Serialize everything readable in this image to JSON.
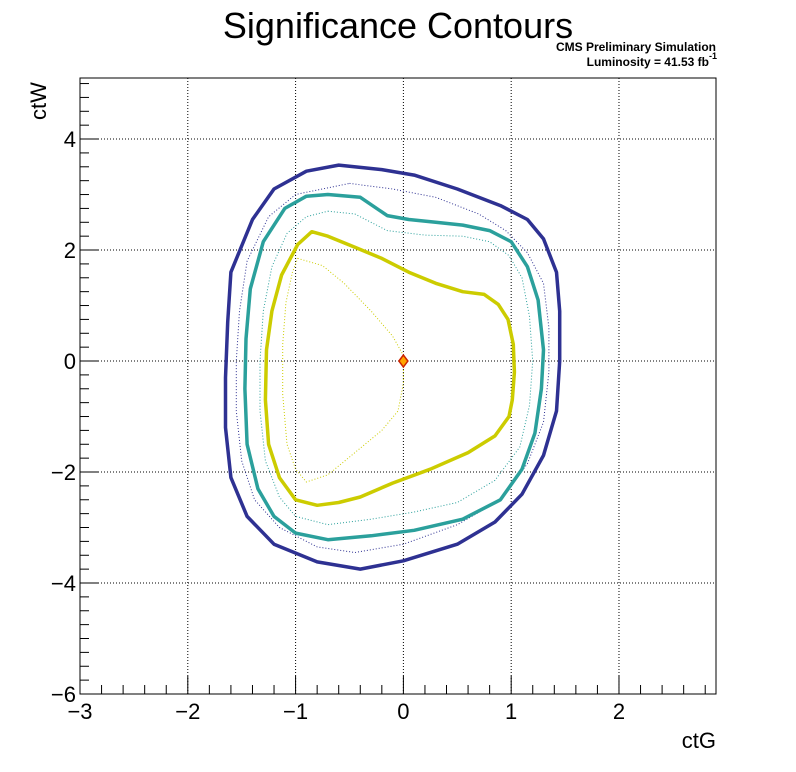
{
  "chart_data": {
    "type": "line",
    "title": "Significance Contours",
    "annotations": [
      "CMS Preliminary Simulation",
      "Luminosity = 41.53 fb",
      "-1"
    ],
    "xlabel": "ctG",
    "ylabel": "ctW",
    "xlim": [
      -3,
      2.9
    ],
    "ylim": [
      -6,
      5.1
    ],
    "x_ticks": [
      "−3",
      "−2",
      "−1",
      "0",
      "1",
      "2"
    ],
    "x_tick_values": [
      -3,
      -2,
      -1,
      0,
      1,
      2
    ],
    "y_ticks": [
      "−6",
      "−4",
      "−2",
      "0",
      "2",
      "4"
    ],
    "y_tick_values": [
      -6,
      -4,
      -2,
      0,
      2,
      4
    ],
    "grid": true,
    "best_fit_point": {
      "x": 0,
      "y": 0,
      "marker": "diamond",
      "fill": "#ffa500",
      "stroke": "#cc2200"
    },
    "series": [
      {
        "color": "#2e3192",
        "style": "solid",
        "points": [
          [
            -0.6,
            3.53
          ],
          [
            -0.2,
            3.45
          ],
          [
            0.1,
            3.35
          ],
          [
            0.5,
            3.1
          ],
          [
            0.9,
            2.8
          ],
          [
            1.15,
            2.55
          ],
          [
            1.3,
            2.2
          ],
          [
            1.42,
            1.6
          ],
          [
            1.45,
            0.9
          ],
          [
            1.45,
            0
          ],
          [
            1.42,
            -0.9
          ],
          [
            1.3,
            -1.7
          ],
          [
            1.1,
            -2.4
          ],
          [
            0.85,
            -2.9
          ],
          [
            0.5,
            -3.3
          ],
          [
            0,
            -3.6
          ],
          [
            -0.4,
            -3.75
          ],
          [
            -0.8,
            -3.62
          ],
          [
            -1.2,
            -3.3
          ],
          [
            -1.45,
            -2.8
          ],
          [
            -1.6,
            -2.1
          ],
          [
            -1.65,
            -1.2
          ],
          [
            -1.65,
            -0.3
          ],
          [
            -1.63,
            0.7
          ],
          [
            -1.6,
            1.6
          ],
          [
            -1.4,
            2.55
          ],
          [
            -1.2,
            3.1
          ],
          [
            -0.9,
            3.42
          ],
          [
            -0.6,
            3.53
          ]
        ]
      },
      {
        "color": "#2e3192",
        "style": "dotted",
        "points": [
          [
            -0.5,
            3.2
          ],
          [
            -0.1,
            3.1
          ],
          [
            0.3,
            2.95
          ],
          [
            0.7,
            2.65
          ],
          [
            0.95,
            2.35
          ],
          [
            1.15,
            1.95
          ],
          [
            1.3,
            1.4
          ],
          [
            1.35,
            0.6
          ],
          [
            1.35,
            -0.2
          ],
          [
            1.3,
            -1.1
          ],
          [
            1.15,
            -1.85
          ],
          [
            0.9,
            -2.5
          ],
          [
            0.5,
            -2.95
          ],
          [
            0,
            -3.3
          ],
          [
            -0.45,
            -3.45
          ],
          [
            -0.8,
            -3.35
          ],
          [
            -1.15,
            -3.0
          ],
          [
            -1.38,
            -2.5
          ],
          [
            -1.5,
            -1.8
          ],
          [
            -1.55,
            -0.9
          ],
          [
            -1.55,
            0
          ],
          [
            -1.52,
            0.9
          ],
          [
            -1.45,
            1.8
          ],
          [
            -1.25,
            2.6
          ],
          [
            -1.0,
            3.0
          ],
          [
            -0.5,
            3.2
          ]
        ]
      },
      {
        "color": "#2ba09c",
        "style": "solid",
        "points": [
          [
            -0.7,
            3.0
          ],
          [
            -0.4,
            2.95
          ],
          [
            -0.15,
            2.62
          ],
          [
            0.05,
            2.55
          ],
          [
            0.3,
            2.5
          ],
          [
            0.55,
            2.45
          ],
          [
            0.8,
            2.35
          ],
          [
            1.0,
            2.15
          ],
          [
            1.15,
            1.7
          ],
          [
            1.25,
            1.1
          ],
          [
            1.3,
            0.2
          ],
          [
            1.28,
            -0.5
          ],
          [
            1.22,
            -1.3
          ],
          [
            1.1,
            -1.95
          ],
          [
            0.9,
            -2.5
          ],
          [
            0.55,
            -2.85
          ],
          [
            0.1,
            -3.05
          ],
          [
            -0.3,
            -3.15
          ],
          [
            -0.7,
            -3.22
          ],
          [
            -1.0,
            -3.1
          ],
          [
            -1.2,
            -2.8
          ],
          [
            -1.35,
            -2.3
          ],
          [
            -1.45,
            -1.5
          ],
          [
            -1.47,
            -0.5
          ],
          [
            -1.46,
            0.4
          ],
          [
            -1.42,
            1.3
          ],
          [
            -1.3,
            2.15
          ],
          [
            -1.1,
            2.75
          ],
          [
            -0.9,
            2.97
          ],
          [
            -0.7,
            3.0
          ]
        ]
      },
      {
        "color": "#2ba09c",
        "style": "dotted",
        "points": [
          [
            -0.7,
            2.7
          ],
          [
            -0.45,
            2.65
          ],
          [
            -0.15,
            2.35
          ],
          [
            0.2,
            2.27
          ],
          [
            0.55,
            2.25
          ],
          [
            0.8,
            2.15
          ],
          [
            0.98,
            1.9
          ],
          [
            1.1,
            1.5
          ],
          [
            1.17,
            0.8
          ],
          [
            1.2,
            0
          ],
          [
            1.17,
            -0.8
          ],
          [
            1.08,
            -1.55
          ],
          [
            0.85,
            -2.15
          ],
          [
            0.5,
            -2.55
          ],
          [
            0.1,
            -2.72
          ],
          [
            -0.3,
            -2.85
          ],
          [
            -0.7,
            -2.95
          ],
          [
            -1.0,
            -2.8
          ],
          [
            -1.15,
            -2.45
          ],
          [
            -1.28,
            -1.8
          ],
          [
            -1.33,
            -0.9
          ],
          [
            -1.33,
            0
          ],
          [
            -1.3,
            0.9
          ],
          [
            -1.22,
            1.7
          ],
          [
            -1.08,
            2.3
          ],
          [
            -0.9,
            2.6
          ],
          [
            -0.7,
            2.7
          ]
        ]
      },
      {
        "color": "#cccc00",
        "style": "solid",
        "points": [
          [
            -0.85,
            2.33
          ],
          [
            -0.7,
            2.25
          ],
          [
            -0.45,
            2.05
          ],
          [
            -0.2,
            1.85
          ],
          [
            0.05,
            1.6
          ],
          [
            0.3,
            1.4
          ],
          [
            0.55,
            1.25
          ],
          [
            0.75,
            1.2
          ],
          [
            0.88,
            1.02
          ],
          [
            0.97,
            0.75
          ],
          [
            1.02,
            0.3
          ],
          [
            1.03,
            -0.2
          ],
          [
            1.01,
            -0.7
          ],
          [
            0.98,
            -1.0
          ],
          [
            0.85,
            -1.35
          ],
          [
            0.6,
            -1.65
          ],
          [
            0.25,
            -1.95
          ],
          [
            -0.1,
            -2.2
          ],
          [
            -0.4,
            -2.45
          ],
          [
            -0.6,
            -2.55
          ],
          [
            -0.8,
            -2.6
          ],
          [
            -1.0,
            -2.5
          ],
          [
            -1.15,
            -2.1
          ],
          [
            -1.25,
            -1.5
          ],
          [
            -1.28,
            -0.7
          ],
          [
            -1.27,
            0.2
          ],
          [
            -1.22,
            0.9
          ],
          [
            -1.13,
            1.55
          ],
          [
            -0.98,
            2.1
          ],
          [
            -0.85,
            2.33
          ]
        ]
      },
      {
        "color": "#cccc00",
        "style": "dotted",
        "points": [
          [
            -0.98,
            1.85
          ],
          [
            -0.75,
            1.72
          ],
          [
            -0.55,
            1.4
          ],
          [
            -0.3,
            0.9
          ],
          [
            -0.1,
            0.45
          ],
          [
            0,
            0.1
          ],
          [
            0.0,
            -0.4
          ],
          [
            -0.05,
            -0.9
          ],
          [
            -0.2,
            -1.25
          ],
          [
            -0.45,
            -1.65
          ],
          [
            -0.7,
            -2.05
          ],
          [
            -0.9,
            -2.18
          ],
          [
            -1.0,
            -1.95
          ],
          [
            -1.08,
            -1.5
          ],
          [
            -1.12,
            -0.6
          ],
          [
            -1.12,
            0.3
          ],
          [
            -1.09,
            1.05
          ],
          [
            -1.03,
            1.6
          ],
          [
            -0.98,
            1.85
          ]
        ]
      }
    ]
  }
}
